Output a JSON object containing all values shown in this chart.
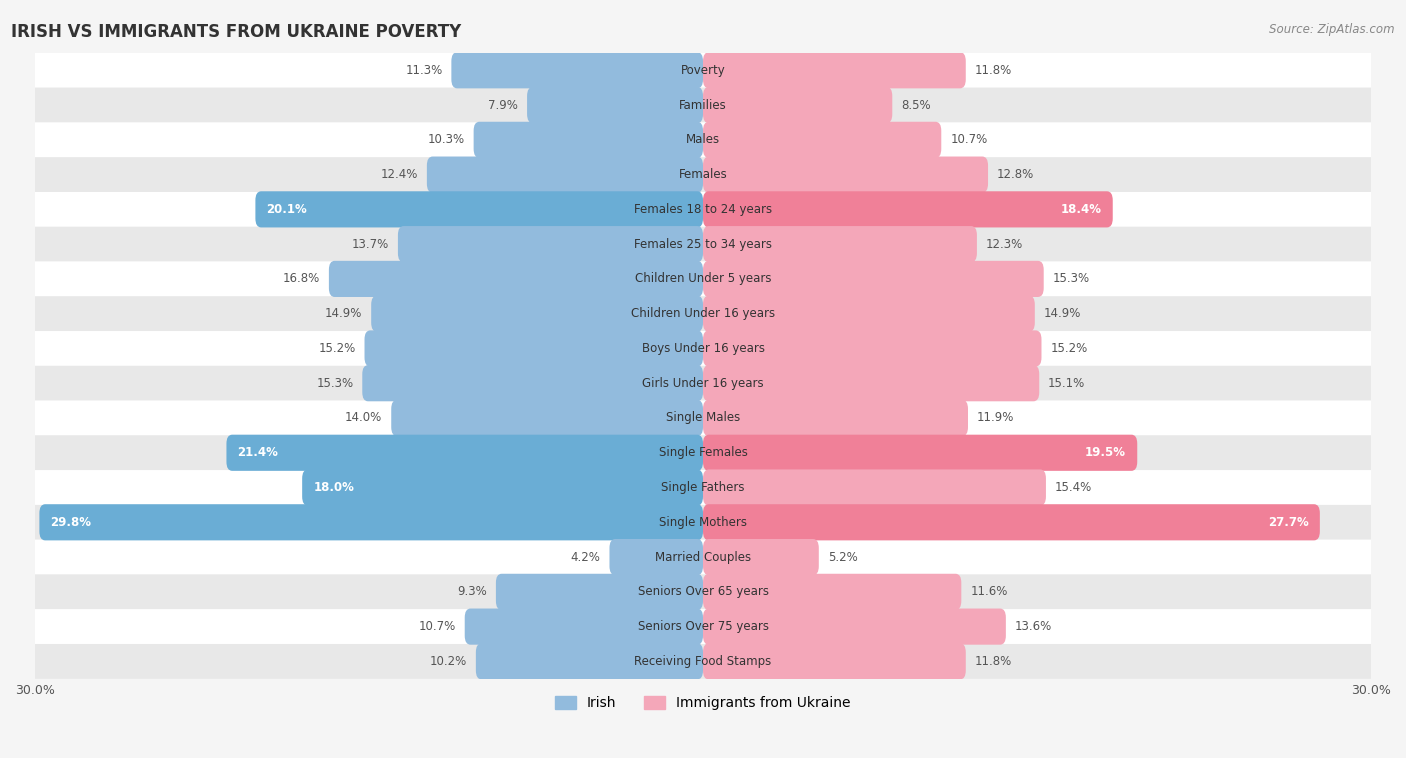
{
  "title": "IRISH VS IMMIGRANTS FROM UKRAINE POVERTY",
  "source": "Source: ZipAtlas.com",
  "categories": [
    "Poverty",
    "Families",
    "Males",
    "Females",
    "Females 18 to 24 years",
    "Females 25 to 34 years",
    "Children Under 5 years",
    "Children Under 16 years",
    "Boys Under 16 years",
    "Girls Under 16 years",
    "Single Males",
    "Single Females",
    "Single Fathers",
    "Single Mothers",
    "Married Couples",
    "Seniors Over 65 years",
    "Seniors Over 75 years",
    "Receiving Food Stamps"
  ],
  "irish_values": [
    11.3,
    7.9,
    10.3,
    12.4,
    20.1,
    13.7,
    16.8,
    14.9,
    15.2,
    15.3,
    14.0,
    21.4,
    18.0,
    29.8,
    4.2,
    9.3,
    10.7,
    10.2
  ],
  "ukraine_values": [
    11.8,
    8.5,
    10.7,
    12.8,
    18.4,
    12.3,
    15.3,
    14.9,
    15.2,
    15.1,
    11.9,
    19.5,
    15.4,
    27.7,
    5.2,
    11.6,
    13.6,
    11.8
  ],
  "irish_color": "#92BBDD",
  "ukraine_color": "#F4A7B9",
  "irish_highlight_color": "#6AADD5",
  "ukraine_highlight_color": "#F08098",
  "highlight_threshold": 17.0,
  "axis_max": 30.0,
  "bar_height": 0.52,
  "background_color": "#f5f5f5",
  "row_colors": [
    "#ffffff",
    "#e8e8e8"
  ],
  "label_color_normal": "#555555",
  "label_color_highlight": "#ffffff",
  "legend_irish": "Irish",
  "legend_ukraine": "Immigrants from Ukraine"
}
